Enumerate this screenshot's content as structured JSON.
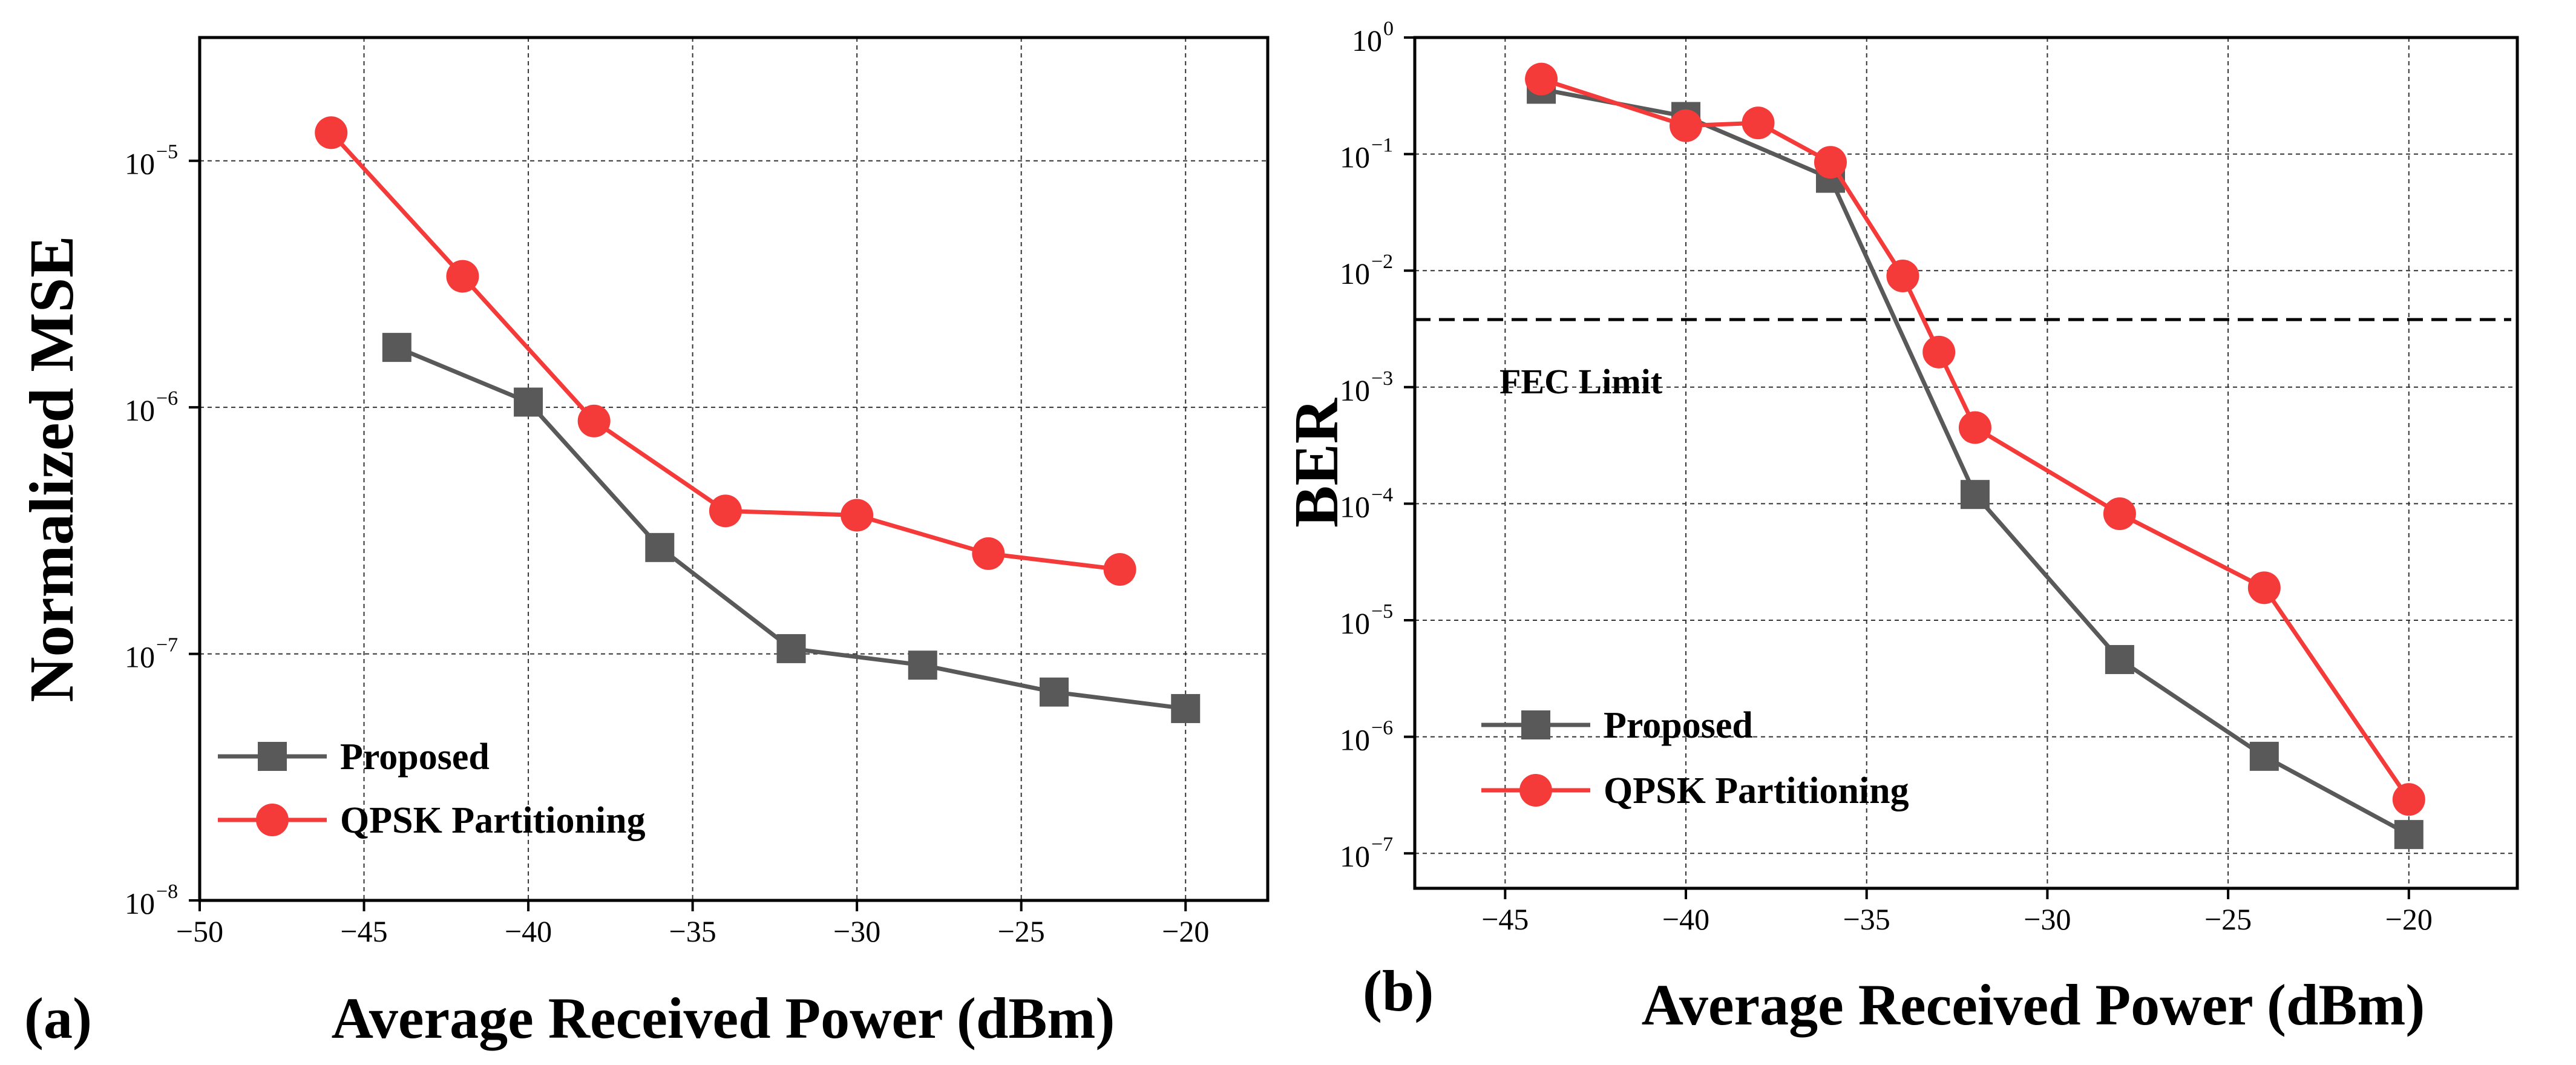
{
  "chart_data": [
    {
      "type": "line",
      "panel_label": "(a)",
      "xlabel": "Average Received Power (dBm)",
      "ylabel": "Normalized MSE",
      "yscale": "log",
      "xlim": [
        -50,
        -17.5
      ],
      "ylim_exp": [
        -8,
        -4.5
      ],
      "xticks": [
        -50,
        -45,
        -40,
        -35,
        -30,
        -25,
        -20
      ],
      "xtick_labels": [
        "−50",
        "−45",
        "−40",
        "−35",
        "−30",
        "−25",
        "−20"
      ],
      "yticks_exp": [
        -8,
        -7,
        -6,
        -5
      ],
      "ytick_labels": [
        "10",
        "10",
        "10",
        "10"
      ],
      "ytick_sup": [
        "−8",
        "−7",
        "−6",
        "−5"
      ],
      "grid": true,
      "legend_position": "bottom-left",
      "series": [
        {
          "name": "Proposed",
          "marker": "square",
          "color": "#595959",
          "x": [
            -44,
            -40,
            -36,
            -32,
            -28,
            -24,
            -20
          ],
          "y": [
            1.75e-06,
            1.05e-06,
            2.7e-07,
            1.05e-07,
            9e-08,
            7e-08,
            6e-08
          ]
        },
        {
          "name": "QPSK Partitioning",
          "marker": "circle",
          "color": "#f53a3a",
          "x": [
            -46,
            -42,
            -38,
            -34,
            -30,
            -26,
            -22
          ],
          "y": [
            1.3e-05,
            3.4e-06,
            8.8e-07,
            3.8e-07,
            3.65e-07,
            2.55e-07,
            2.2e-07
          ]
        }
      ]
    },
    {
      "type": "line",
      "panel_label": "(b)",
      "xlabel": "Average Received Power (dBm)",
      "ylabel": "BER",
      "yscale": "log",
      "xlim": [
        -47.5,
        -17
      ],
      "ylim_exp": [
        -7.3,
        0
      ],
      "xticks": [
        -45,
        -40,
        -35,
        -30,
        -25,
        -20
      ],
      "xtick_labels": [
        "−45",
        "−40",
        "−35",
        "−30",
        "−25",
        "−20"
      ],
      "yticks_exp": [
        -7,
        -6,
        -5,
        -4,
        -3,
        -2,
        -1,
        0
      ],
      "ytick_labels": [
        "10",
        "10",
        "10",
        "10",
        "10",
        "10",
        "10",
        "10"
      ],
      "ytick_sup": [
        "−7",
        "−6",
        "−5",
        "−4",
        "−3",
        "−2",
        "−1",
        "0"
      ],
      "grid": true,
      "legend_position": "bottom-left",
      "annotations": [
        {
          "text": "FEC Limit",
          "y": 0.0038
        }
      ],
      "series": [
        {
          "name": "Proposed",
          "marker": "square",
          "color": "#595959",
          "x": [
            -44,
            -40,
            -36,
            -32,
            -28,
            -24,
            -20
          ],
          "y": [
            0.36,
            0.21,
            0.062,
            0.00012,
            4.6e-06,
            6.8e-07,
            1.45e-07
          ]
        },
        {
          "name": "QPSK Partitioning",
          "marker": "circle",
          "color": "#f53a3a",
          "x": [
            -44,
            -40,
            -38,
            -36,
            -34,
            -33,
            -32,
            -28,
            -24,
            -20
          ],
          "y": [
            0.44,
            0.175,
            0.185,
            0.085,
            0.009,
            0.002,
            0.00045,
            8.2e-05,
            1.9e-05,
            2.9e-07
          ]
        }
      ]
    }
  ]
}
